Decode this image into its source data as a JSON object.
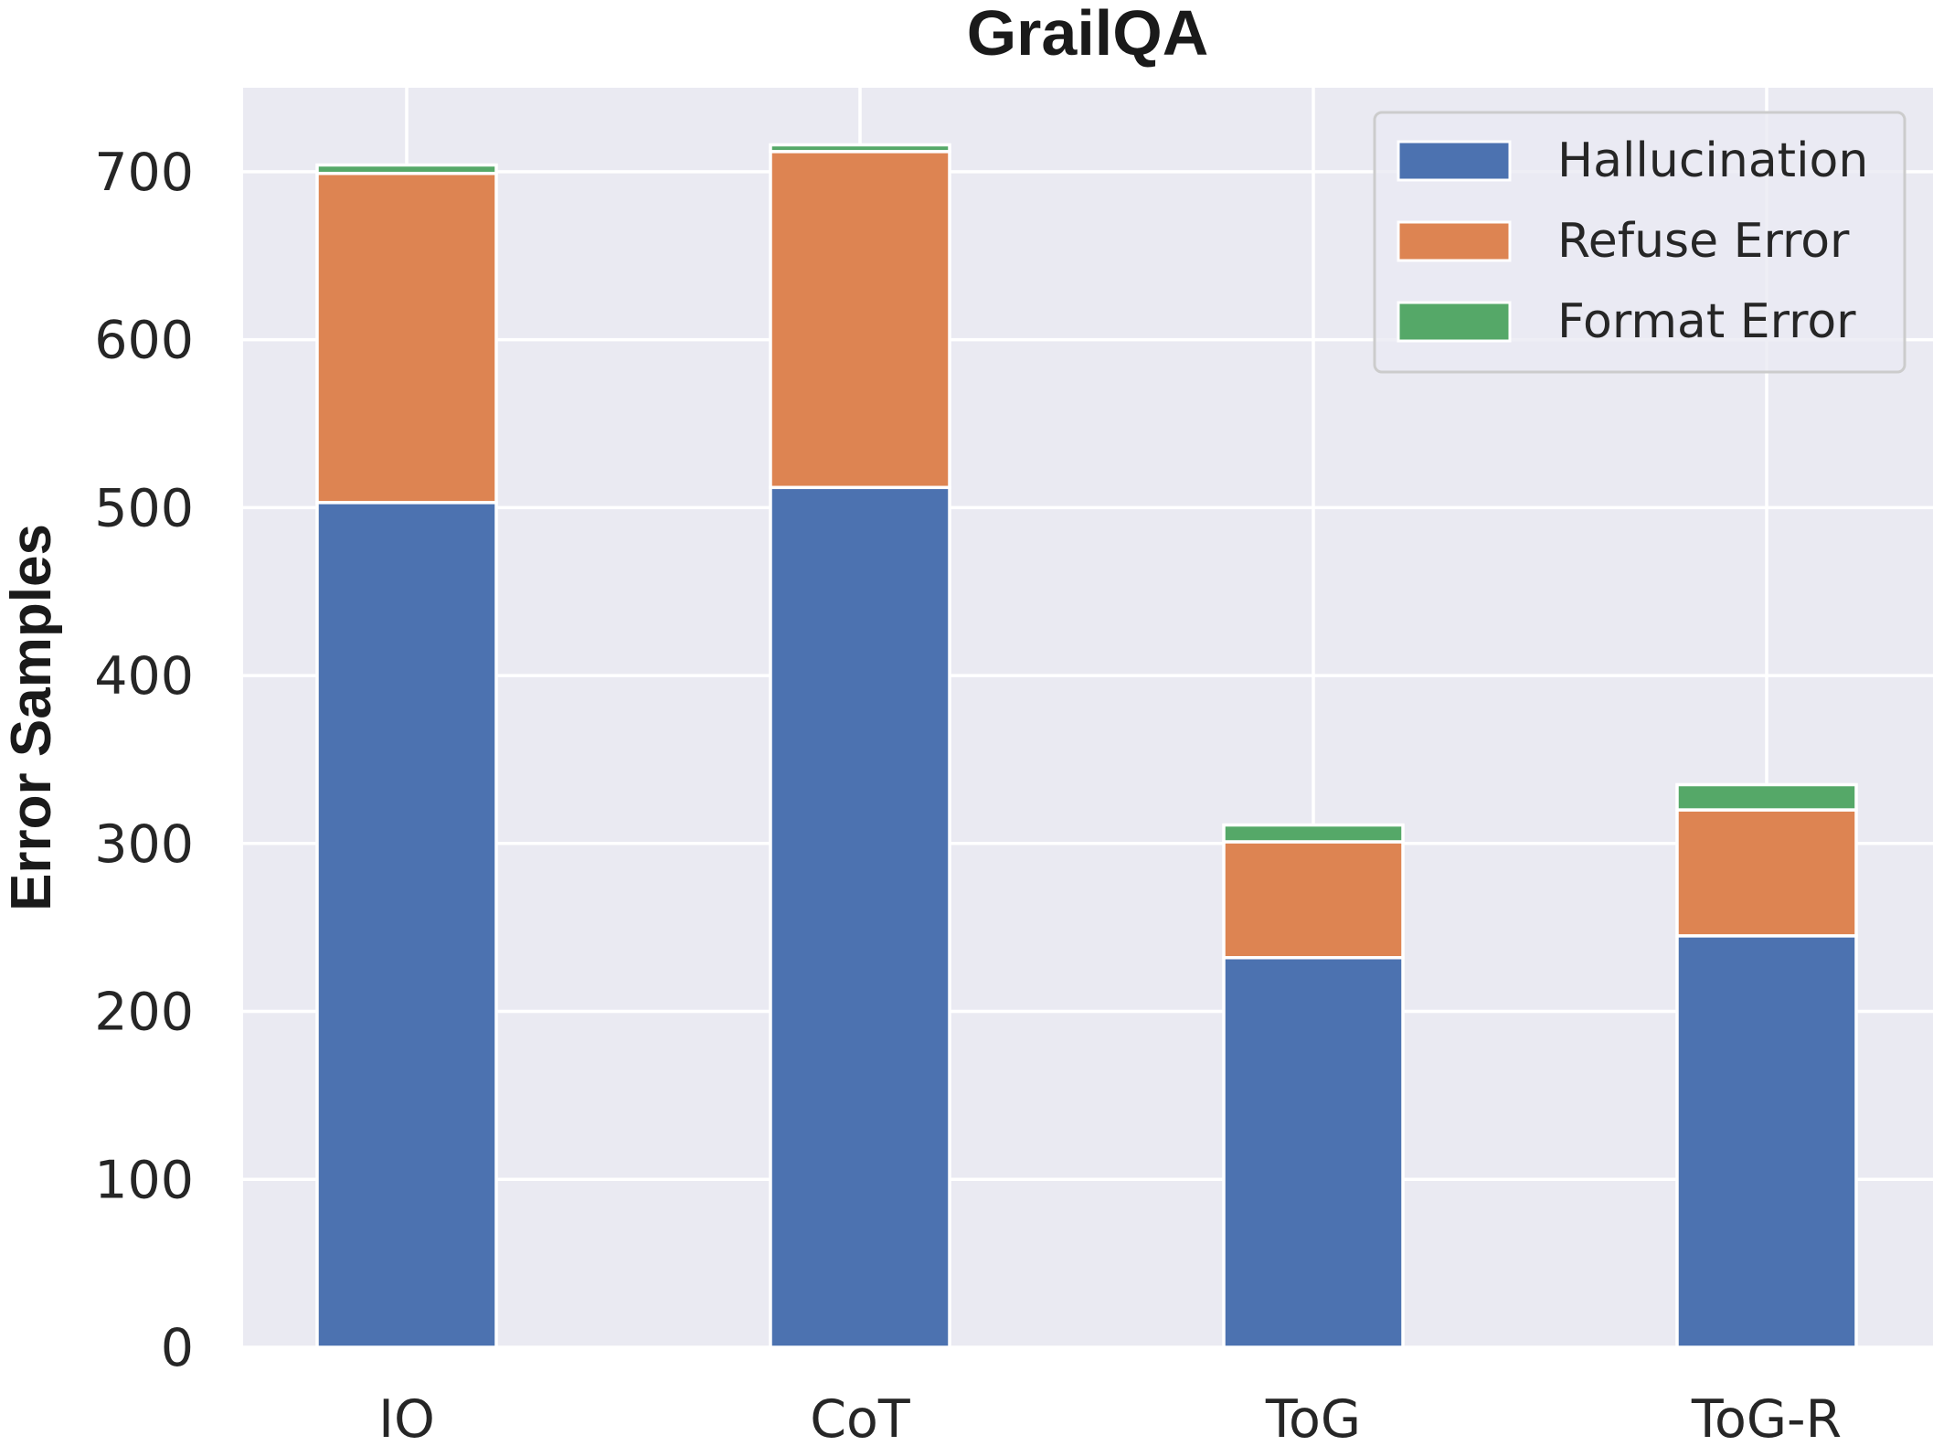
{
  "chart_data": {
    "type": "bar",
    "stacked": true,
    "title": "GrailQA",
    "xlabel": "",
    "ylabel": "Error Samples",
    "categories": [
      "IO",
      "CoT",
      "ToG",
      "ToG-R"
    ],
    "series": [
      {
        "name": "Hallucination",
        "values": [
          503,
          512,
          232,
          245
        ],
        "color": "#4c72b0"
      },
      {
        "name": "Refuse Error",
        "values": [
          196,
          200,
          69,
          75
        ],
        "color": "#dd8452"
      },
      {
        "name": "Format Error",
        "values": [
          5,
          4,
          10,
          15
        ],
        "color": "#55a868"
      }
    ],
    "ylim": [
      0,
      750
    ],
    "yticks": [
      0,
      100,
      200,
      300,
      400,
      500,
      600,
      700
    ],
    "grid": true,
    "legend_position": "top-right",
    "background_color": "#eaeaf2",
    "grid_color": "#ffffff"
  }
}
